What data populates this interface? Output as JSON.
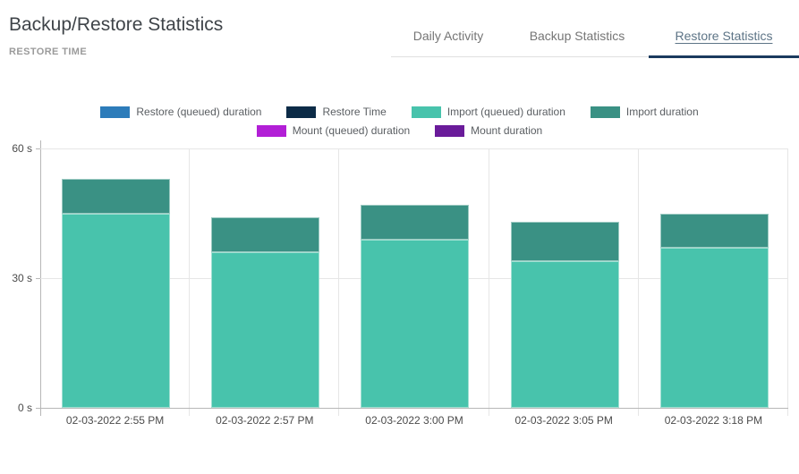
{
  "header": {
    "title": "Backup/Restore Statistics",
    "subtitle": "RESTORE TIME"
  },
  "tabs": [
    {
      "label": "Daily Activity",
      "active": false
    },
    {
      "label": "Backup Statistics",
      "active": false
    },
    {
      "label": "Restore Statistics",
      "active": true
    }
  ],
  "ui_colors": {
    "active_tab_underline": "#1b3a5e",
    "active_tab_text": "#5d7486",
    "inactive_tab_text": "#757575",
    "tab_divider": "#e0e0e0",
    "axis_line": "#b7b7b7",
    "gridline": "#e6e6e6"
  },
  "chart_data": {
    "type": "bar",
    "stacked": true,
    "title": "RESTORE TIME",
    "categories": [
      "02-03-2022 2:55 PM",
      "02-03-2022 2:57 PM",
      "02-03-2022 3:00 PM",
      "02-03-2022 3:05 PM",
      "02-03-2022 3:18 PM"
    ],
    "series": [
      {
        "name": "Restore (queued) duration",
        "color": "#2d7cba",
        "values": [
          0,
          0,
          0,
          0,
          0
        ]
      },
      {
        "name": "Restore Time",
        "color": "#0c2b47",
        "values": [
          0,
          0,
          0,
          0,
          0
        ]
      },
      {
        "name": "Import (queued) duration",
        "color": "#48c3ac",
        "values": [
          45,
          36,
          39,
          34,
          37
        ]
      },
      {
        "name": "Import duration",
        "color": "#3a9184",
        "values": [
          8,
          8,
          8,
          9,
          8
        ]
      },
      {
        "name": "Mount (queued) duration",
        "color": "#b21fd6",
        "values": [
          0,
          0,
          0,
          0,
          0
        ]
      },
      {
        "name": "Mount duration",
        "color": "#6a1b9a",
        "values": [
          0,
          0,
          0,
          0,
          0
        ]
      }
    ],
    "yticks": [
      {
        "label": "60 s",
        "value": 60
      },
      {
        "label": "30 s",
        "value": 30
      },
      {
        "label": "0 s",
        "value": 0
      }
    ],
    "ylim": [
      0,
      60
    ],
    "ylabel": "",
    "xlabel": "",
    "grid": true,
    "legend_position": "top"
  }
}
